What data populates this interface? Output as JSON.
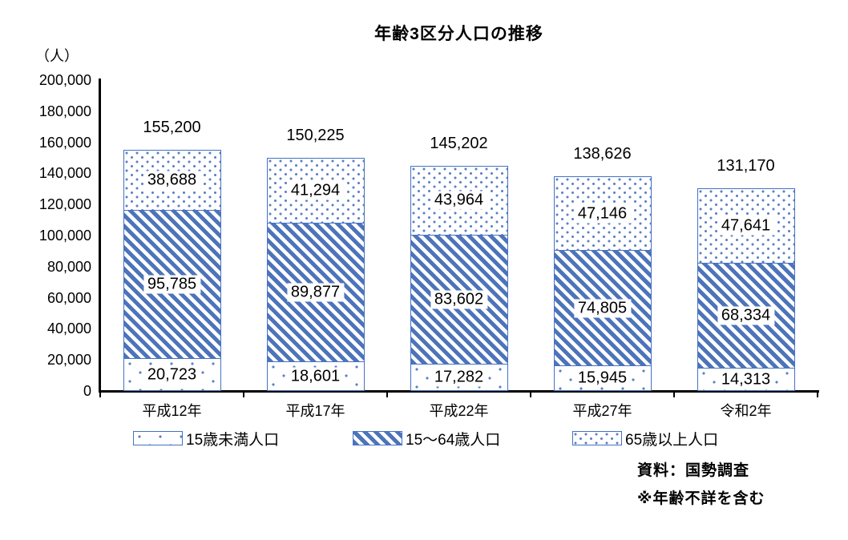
{
  "figure": {
    "title": "年齢3区分人口の推移",
    "unit_label": "（人）"
  },
  "chart_data": {
    "type": "bar",
    "stacked": true,
    "title": "年齢3区分人口の推移",
    "y_unit": "（人）",
    "categories": [
      "平成12年",
      "平成17年",
      "平成22年",
      "平成27年",
      "令和2年"
    ],
    "series": [
      {
        "name": "15歳未満人口",
        "pattern": "sparse-dots",
        "values": [
          20723,
          18601,
          17282,
          15945,
          14313
        ]
      },
      {
        "name": "15～64歳人口",
        "pattern": "stripes",
        "values": [
          95785,
          89877,
          83602,
          74805,
          68334
        ]
      },
      {
        "name": "65歳以上人口",
        "pattern": "dense-dots",
        "values": [
          38688,
          41294,
          43964,
          47146,
          47641
        ]
      }
    ],
    "totals": [
      155200,
      150225,
      145202,
      138626,
      131170
    ],
    "ylim": [
      0,
      200000
    ],
    "ytick_step": 20000,
    "grid": false,
    "legend_position": "bottom"
  },
  "notes": {
    "source": "資料：国勢調査",
    "caveat": "※年齢不詳を含む"
  },
  "colors": {
    "accent": "#4472C4",
    "pattern_blue": "#4D74BA",
    "axis": "#000000",
    "label_background": "#FFFFFF"
  }
}
